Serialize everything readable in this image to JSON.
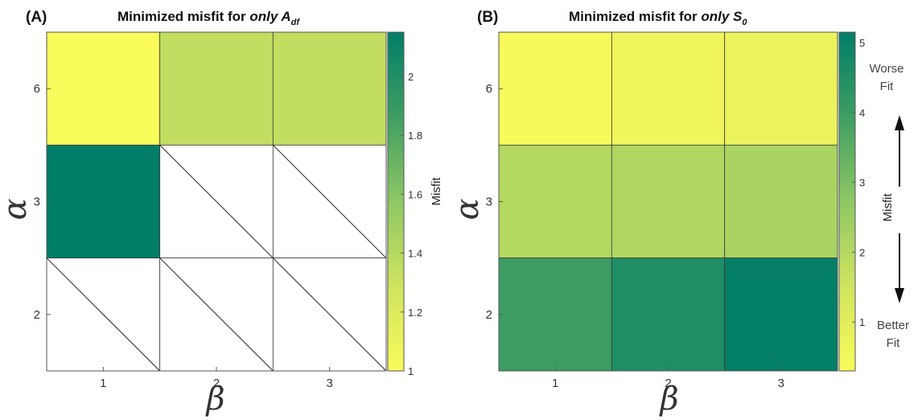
{
  "chart_data": [
    {
      "type": "heatmap",
      "panel_label": "(A)",
      "title": "Minimized misfit for ",
      "title_italic": "only A",
      "title_subscript": "df",
      "xlabel": "β",
      "ylabel": "α",
      "x_categories": [
        "1",
        "2",
        "3"
      ],
      "y_categories": [
        "6",
        "3",
        "2"
      ],
      "values": [
        [
          1.0,
          1.35,
          1.35
        ],
        [
          2.15,
          null,
          null
        ],
        [
          null,
          null,
          null
        ]
      ],
      "missing_pattern": "diagonal line",
      "colorbar": {
        "label": "Misfit",
        "range": [
          1.0,
          2.15
        ],
        "ticks": [
          "1",
          "1.2",
          "1.4",
          "1.6",
          "1.8",
          "2"
        ],
        "tick_values": [
          1.0,
          1.2,
          1.4,
          1.6,
          1.8,
          2.0
        ]
      }
    },
    {
      "type": "heatmap",
      "panel_label": "(B)",
      "title": "Minimized misfit for ",
      "title_italic": "only S",
      "title_subscript": "0",
      "xlabel": "β",
      "ylabel": "α",
      "x_categories": [
        "1",
        "2",
        "3"
      ],
      "y_categories": [
        "6",
        "3",
        "2"
      ],
      "values": [
        [
          0.35,
          0.6,
          0.7
        ],
        [
          2.0,
          2.1,
          2.2
        ],
        [
          4.0,
          4.55,
          5.1
        ]
      ],
      "colorbar": {
        "label": "Misfit",
        "range": [
          0.3,
          5.15
        ],
        "ticks": [
          "1",
          "2",
          "3",
          "4",
          "5"
        ],
        "tick_values": [
          1,
          2,
          3,
          4,
          5
        ]
      },
      "annotations": {
        "top": [
          "Worse",
          "Fit"
        ],
        "bottom": [
          "Better",
          "Fit"
        ]
      }
    }
  ],
  "colors": {
    "low": "#f9fb5a",
    "high": "#007e68",
    "grid": "#222222"
  }
}
